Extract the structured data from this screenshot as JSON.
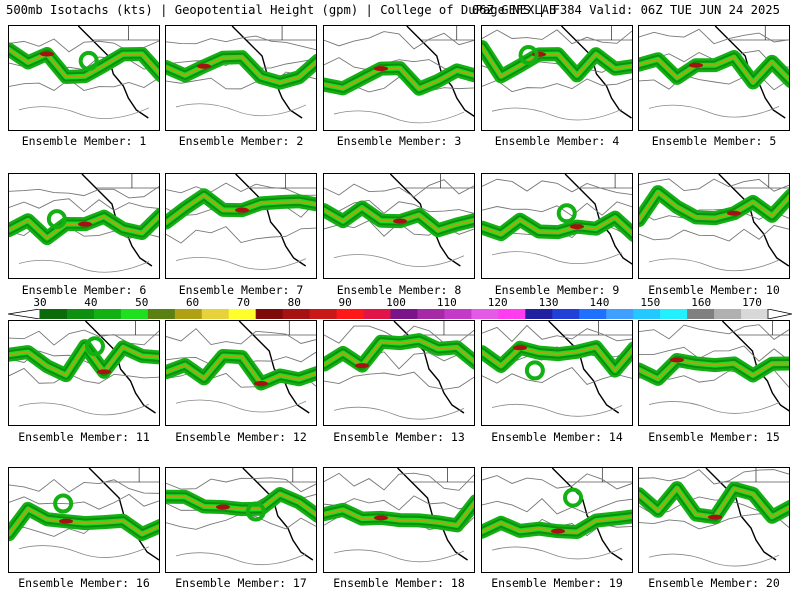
{
  "header": {
    "title_left": "500mb Isotachs (kts) | Geopotential Height (gpm) | College of DuPage NEXLAB",
    "title_right": "06Z GEFS | F384 Valid: 06Z TUE JUN 24 2025"
  },
  "colorbar": {
    "ticks": [
      "30",
      "40",
      "50",
      "60",
      "70",
      "80",
      "90",
      "100",
      "110",
      "120",
      "130",
      "140",
      "150",
      "160",
      "170"
    ],
    "colors": [
      "#0b6b0b",
      "#0f8f0f",
      "#12b012",
      "#1ee01e",
      "#5a7f12",
      "#b0a114",
      "#e8d23c",
      "#ffff2a",
      "#7e0a0a",
      "#a61212",
      "#c81818",
      "#ff1818",
      "#e01446",
      "#7a1488",
      "#a52aa6",
      "#c43ac8",
      "#e45ae6",
      "#ff3cf0",
      "#2020a0",
      "#2040d8",
      "#2070ff",
      "#40a0ff",
      "#22c8ff",
      "#22f0ff",
      "#808080",
      "#b0b0b0",
      "#d8d8d8"
    ]
  },
  "panels": [
    {
      "label": "Ensemble Member: 1"
    },
    {
      "label": "Ensemble Member: 2"
    },
    {
      "label": "Ensemble Member: 3"
    },
    {
      "label": "Ensemble Member: 4"
    },
    {
      "label": "Ensemble Member: 5"
    },
    {
      "label": "Ensemble Member: 6"
    },
    {
      "label": "Ensemble Member: 7"
    },
    {
      "label": "Ensemble Member: 8"
    },
    {
      "label": "Ensemble Member: 9"
    },
    {
      "label": "Ensemble Member: 10"
    },
    {
      "label": "Ensemble Member: 11"
    },
    {
      "label": "Ensemble Member: 12"
    },
    {
      "label": "Ensemble Member: 13"
    },
    {
      "label": "Ensemble Member: 14"
    },
    {
      "label": "Ensemble Member: 15"
    },
    {
      "label": "Ensemble Member: 16"
    },
    {
      "label": "Ensemble Member: 17"
    },
    {
      "label": "Ensemble Member: 18"
    },
    {
      "label": "Ensemble Member: 19"
    },
    {
      "label": "Ensemble Member: 20"
    }
  ]
}
